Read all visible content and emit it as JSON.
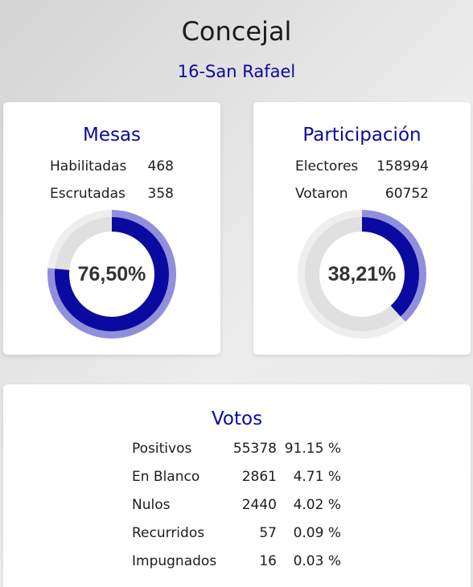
{
  "header": {
    "title": "Concejal",
    "subtitle": "16-San Rafael"
  },
  "mesas": {
    "title": "Mesas",
    "rows": [
      {
        "label": "Habilitadas",
        "value": "468"
      },
      {
        "label": "Escrutadas",
        "value": "358"
      }
    ],
    "percent_label": "76,50%",
    "percent": 76.5
  },
  "participacion": {
    "title": "Participación",
    "rows": [
      {
        "label": "Electores",
        "value": "158994"
      },
      {
        "label": "Votaron",
        "value": "60752"
      }
    ],
    "percent_label": "38,21%",
    "percent": 38.21
  },
  "votos": {
    "title": "Votos",
    "rows": [
      {
        "label": "Positivos",
        "count": "55378",
        "percent": "91.15 %"
      },
      {
        "label": "En Blanco",
        "count": "2861",
        "percent": "4.71 %"
      },
      {
        "label": "Nulos",
        "count": "2440",
        "percent": "4.02 %"
      },
      {
        "label": "Recurridos",
        "count": "57",
        "percent": "0.09 %"
      },
      {
        "label": "Impugnados",
        "count": "16",
        "percent": "0.03 %"
      }
    ]
  },
  "colors": {
    "accent": "#0a0aa0",
    "donut_fill": "#0a0aa0",
    "donut_halo": "#8f8fdc",
    "donut_track": "#e0e0e0",
    "donut_track_outer": "#eeeeee"
  }
}
